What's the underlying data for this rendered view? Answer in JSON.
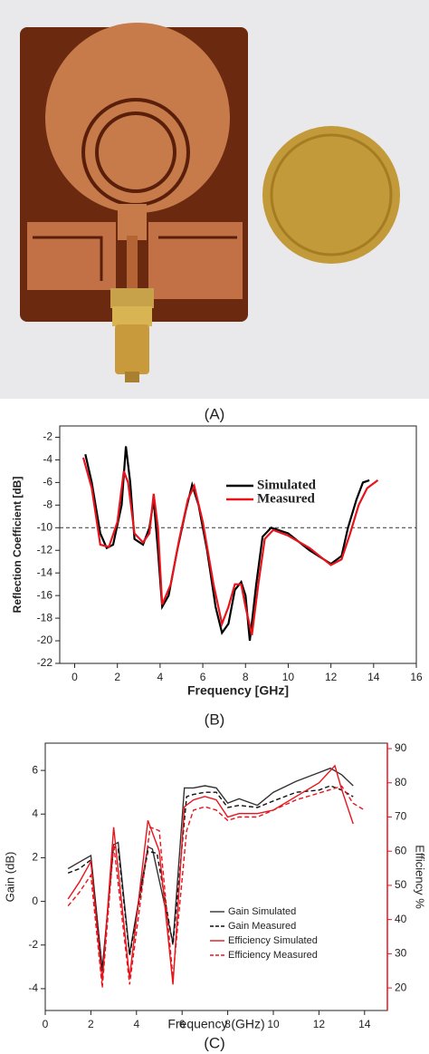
{
  "figure_a": {
    "caption": "(A)"
  },
  "chart_data": [
    {
      "type": "line",
      "caption": "(B)",
      "x_label": "Frequency [GHz]",
      "y_label": "Reflection Coefficient [dB]",
      "xlim": [
        -0.7,
        16
      ],
      "xticks": [
        0,
        2,
        4,
        6,
        8,
        10,
        12,
        14,
        16
      ],
      "ylim": [
        -22,
        -1
      ],
      "yticks": [
        -22,
        -20,
        -18,
        -16,
        -14,
        -12,
        -10,
        -8,
        -6,
        -4,
        -2
      ],
      "hline": -10,
      "series": [
        {
          "name": "Simulated",
          "color": "#000000",
          "dash": false,
          "x": [
            0.5,
            0.8,
            1.2,
            1.5,
            1.8,
            2.2,
            2.4,
            2.6,
            2.8,
            3.2,
            3.5,
            3.7,
            3.9,
            4.1,
            4.4,
            4.8,
            5.2,
            5.5,
            5.8,
            6.2,
            6.6,
            6.9,
            7.2,
            7.5,
            7.8,
            8.0,
            8.2,
            8.5,
            8.8,
            9.2,
            10,
            11,
            12,
            12.5,
            12.8,
            13.2,
            13.5,
            13.8
          ],
          "values": [
            -3.5,
            -6,
            -10.5,
            -11.8,
            -11.5,
            -8,
            -2.8,
            -6,
            -11,
            -11.5,
            -10,
            -7.5,
            -12,
            -17,
            -16,
            -12,
            -8.5,
            -6.2,
            -8,
            -12,
            -17,
            -19.3,
            -18.5,
            -15.5,
            -14.8,
            -16,
            -20,
            -15,
            -10.8,
            -10,
            -10.5,
            -12,
            -13.2,
            -12.5,
            -10,
            -7.5,
            -6,
            -5.8
          ]
        },
        {
          "name": "Measured",
          "color": "#e8141c",
          "dash": false,
          "x": [
            0.4,
            0.8,
            1.2,
            1.6,
            2,
            2.3,
            2.5,
            2.8,
            3.2,
            3.5,
            3.7,
            3.9,
            4.1,
            4.5,
            4.9,
            5.3,
            5.6,
            6,
            6.5,
            6.9,
            7.2,
            7.5,
            7.8,
            8.0,
            8.3,
            8.6,
            8.9,
            9.3,
            10,
            11,
            12,
            12.5,
            12.9,
            13.3,
            13.7,
            14.2
          ],
          "values": [
            -3.8,
            -6.5,
            -11.5,
            -11.7,
            -9.5,
            -5,
            -6,
            -10.5,
            -11.3,
            -10.5,
            -7,
            -10,
            -16.8,
            -15,
            -11,
            -7.5,
            -6.3,
            -9.5,
            -15,
            -18.5,
            -17,
            -15,
            -15,
            -17,
            -19.5,
            -15,
            -11,
            -10.2,
            -10.7,
            -11.8,
            -13.3,
            -12.8,
            -10.5,
            -8,
            -6.5,
            -5.8
          ]
        }
      ]
    },
    {
      "type": "line",
      "caption": "(C)",
      "x_label": "Frequency (GHz)",
      "y_label": "Gain (dB)",
      "y2_label": "Efficiency %",
      "y2_color": "#e8141c",
      "xlim": [
        0,
        15
      ],
      "xticks": [
        0,
        2,
        4,
        6,
        8,
        10,
        12,
        14
      ],
      "ylim": [
        -5,
        7.25
      ],
      "yticks": [
        -4,
        -2,
        0,
        2,
        4,
        6
      ],
      "y2lim": [
        13.4,
        91.6
      ],
      "y2ticks": [
        20,
        30,
        40,
        50,
        60,
        70,
        80,
        90
      ],
      "series": [
        {
          "name": "Gain Simulated",
          "color": "#333333",
          "dash": false,
          "x": [
            1,
            1.5,
            2,
            2.5,
            3,
            3.2,
            3.7,
            4.5,
            4.7,
            5.6,
            6.1,
            6.5,
            7,
            7.5,
            8,
            8.5,
            9.3,
            10,
            11,
            12,
            12.5,
            13,
            13.5
          ],
          "values": [
            1.5,
            1.8,
            2.1,
            -3.1,
            2.6,
            2.7,
            -2.4,
            2.5,
            2.4,
            -1.9,
            5.2,
            5.2,
            5.3,
            5.2,
            4.5,
            4.7,
            4.4,
            5,
            5.5,
            5.9,
            6.1,
            5.8,
            5.3
          ]
        },
        {
          "name": "Gain Measured",
          "color": "#111111",
          "dash": true,
          "x": [
            1,
            1.5,
            2,
            2.5,
            3,
            3.2,
            3.7,
            4.5,
            4.9,
            5.6,
            6.2,
            6.5,
            7,
            7.5,
            8,
            8.5,
            9.3,
            10,
            11,
            12,
            12.5,
            13,
            13.5
          ],
          "values": [
            1.3,
            1.5,
            1.9,
            -3.2,
            2.5,
            2.4,
            -2.5,
            2.3,
            2.2,
            -2,
            4.8,
            4.9,
            5,
            5,
            4.3,
            4.4,
            4.3,
            4.6,
            5,
            5.1,
            5.3,
            5.1,
            4.8
          ]
        },
        {
          "name": "Efficiency Simulated",
          "color": "#e8141c",
          "dash": false,
          "axis": "y2",
          "x": [
            1,
            1.5,
            2,
            2.5,
            3,
            3.7,
            4.5,
            5,
            5.6,
            6.1,
            6.5,
            7,
            7.5,
            8,
            8.5,
            9.3,
            10,
            11,
            12,
            12.7,
            13,
            13.5
          ],
          "values": [
            46,
            51,
            57,
            22,
            67,
            23,
            69,
            60,
            21,
            73,
            75,
            76,
            75,
            70,
            71,
            71,
            72,
            76,
            80,
            85,
            78,
            68
          ]
        },
        {
          "name": "Efficiency Measured",
          "color": "#e8141c",
          "dash": true,
          "axis": "y2",
          "x": [
            1,
            1.5,
            2,
            2.5,
            3,
            3.7,
            4.6,
            5,
            5.6,
            6.2,
            6.5,
            7,
            7.5,
            8,
            8.5,
            9.3,
            10,
            11,
            12,
            12.5,
            13,
            13.5,
            14
          ],
          "values": [
            44,
            48,
            53,
            20,
            62,
            21,
            67,
            66,
            23,
            66,
            72,
            73,
            72,
            69,
            70,
            70,
            72,
            75,
            77,
            78,
            79,
            74,
            72
          ]
        }
      ]
    }
  ]
}
